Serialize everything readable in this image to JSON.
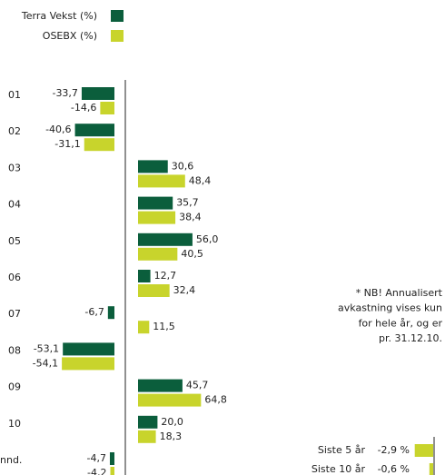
{
  "chart_data": [
    {
      "type": "bar",
      "orientation": "horizontal",
      "categories": [
        "01",
        "02",
        "03",
        "04",
        "05",
        "06",
        "07",
        "08",
        "09",
        "10",
        "nnd."
      ],
      "series": [
        {
          "name": "Terra Vekst (%)",
          "color": "#0b5e3c",
          "values": [
            -33.7,
            -40.6,
            30.6,
            35.7,
            56.0,
            12.7,
            -6.7,
            -53.1,
            45.7,
            20.0,
            -4.7
          ],
          "value_labels": [
            "-33,7",
            "-40,6",
            "30,6",
            "35,7",
            "56,0",
            "12,7",
            "-6,7",
            "-53,1",
            "45,7",
            "20,0",
            "-4,7"
          ]
        },
        {
          "name": "OSEBX (%)",
          "color": "#c8d42c",
          "values": [
            -14.6,
            -31.1,
            48.4,
            38.4,
            40.5,
            32.4,
            11.5,
            -54.1,
            64.8,
            18.3,
            -4.2
          ],
          "value_labels": [
            "-14,6",
            "-31,1",
            "48,4",
            "38,4",
            "40,5",
            "32,4",
            "11,5",
            "-54,1",
            "64,8",
            "18,3",
            "-4,2"
          ]
        }
      ],
      "annotation": [
        "* NB! Annualisert",
        "avkastning vises kun",
        "for hele år, og er",
        "pr. 31.12.10."
      ]
    },
    {
      "type": "bar",
      "orientation": "horizontal",
      "categories": [
        "Siste 5 år",
        "Siste 10 år"
      ],
      "values": [
        -2.9,
        -0.6
      ],
      "value_labels": [
        "-2,9 %",
        "-0,6 %"
      ],
      "color": "#c8d42c"
    }
  ]
}
